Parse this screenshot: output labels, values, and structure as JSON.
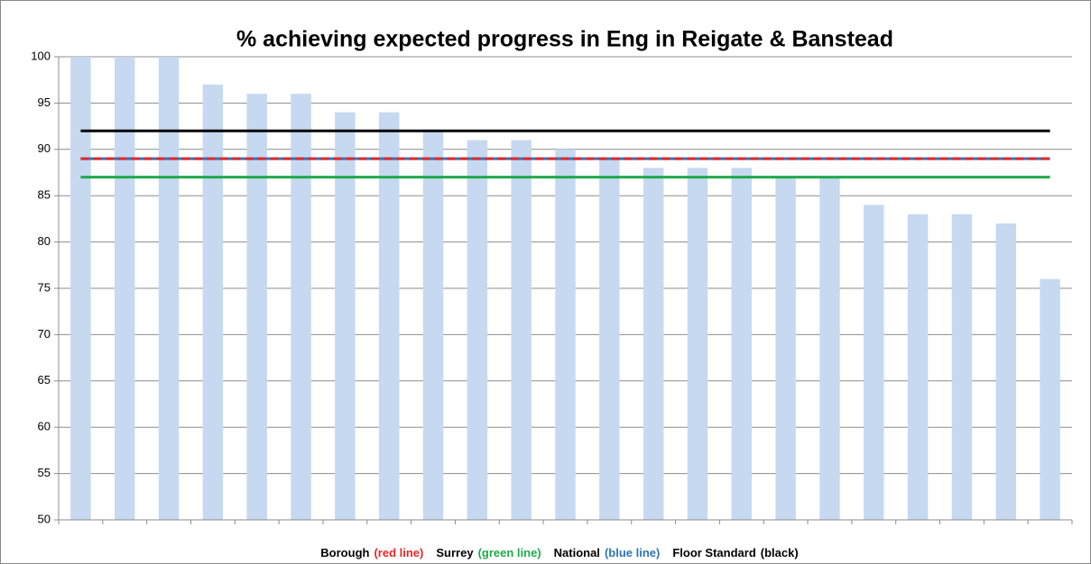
{
  "chart_data": {
    "type": "bar",
    "title": "% achieving expected progress in Eng in Reigate & Banstead",
    "categories": [
      null,
      null,
      null,
      null,
      null,
      null,
      null,
      null,
      null,
      null,
      null,
      null,
      null,
      null,
      null,
      null,
      null,
      null,
      null,
      null,
      null,
      null,
      null
    ],
    "values": [
      100,
      100,
      100,
      97,
      96,
      96,
      94,
      94,
      92,
      91,
      91,
      90,
      89,
      88,
      88,
      88,
      87,
      87,
      84,
      83,
      83,
      82,
      76
    ],
    "color": "#c6d9f1",
    "ylim": [
      50,
      100
    ],
    "yticks": [
      50,
      55,
      60,
      65,
      70,
      75,
      80,
      85,
      90,
      95,
      100
    ],
    "grid": true,
    "reference_lines": [
      {
        "name": "Borough",
        "note": "(red line)",
        "value": 89,
        "color": "#e8262a",
        "dashed": true
      },
      {
        "name": "Surrey",
        "note": "(green line)",
        "value": 87,
        "color": "#1faa4b",
        "dashed": false
      },
      {
        "name": "National",
        "note": "(blue line)",
        "value": 89,
        "color": "#2e75b6",
        "dashed": false
      },
      {
        "name": "Floor Standard",
        "note": "(black)",
        "value": 92,
        "color": "#000000",
        "dashed": false
      }
    ]
  }
}
